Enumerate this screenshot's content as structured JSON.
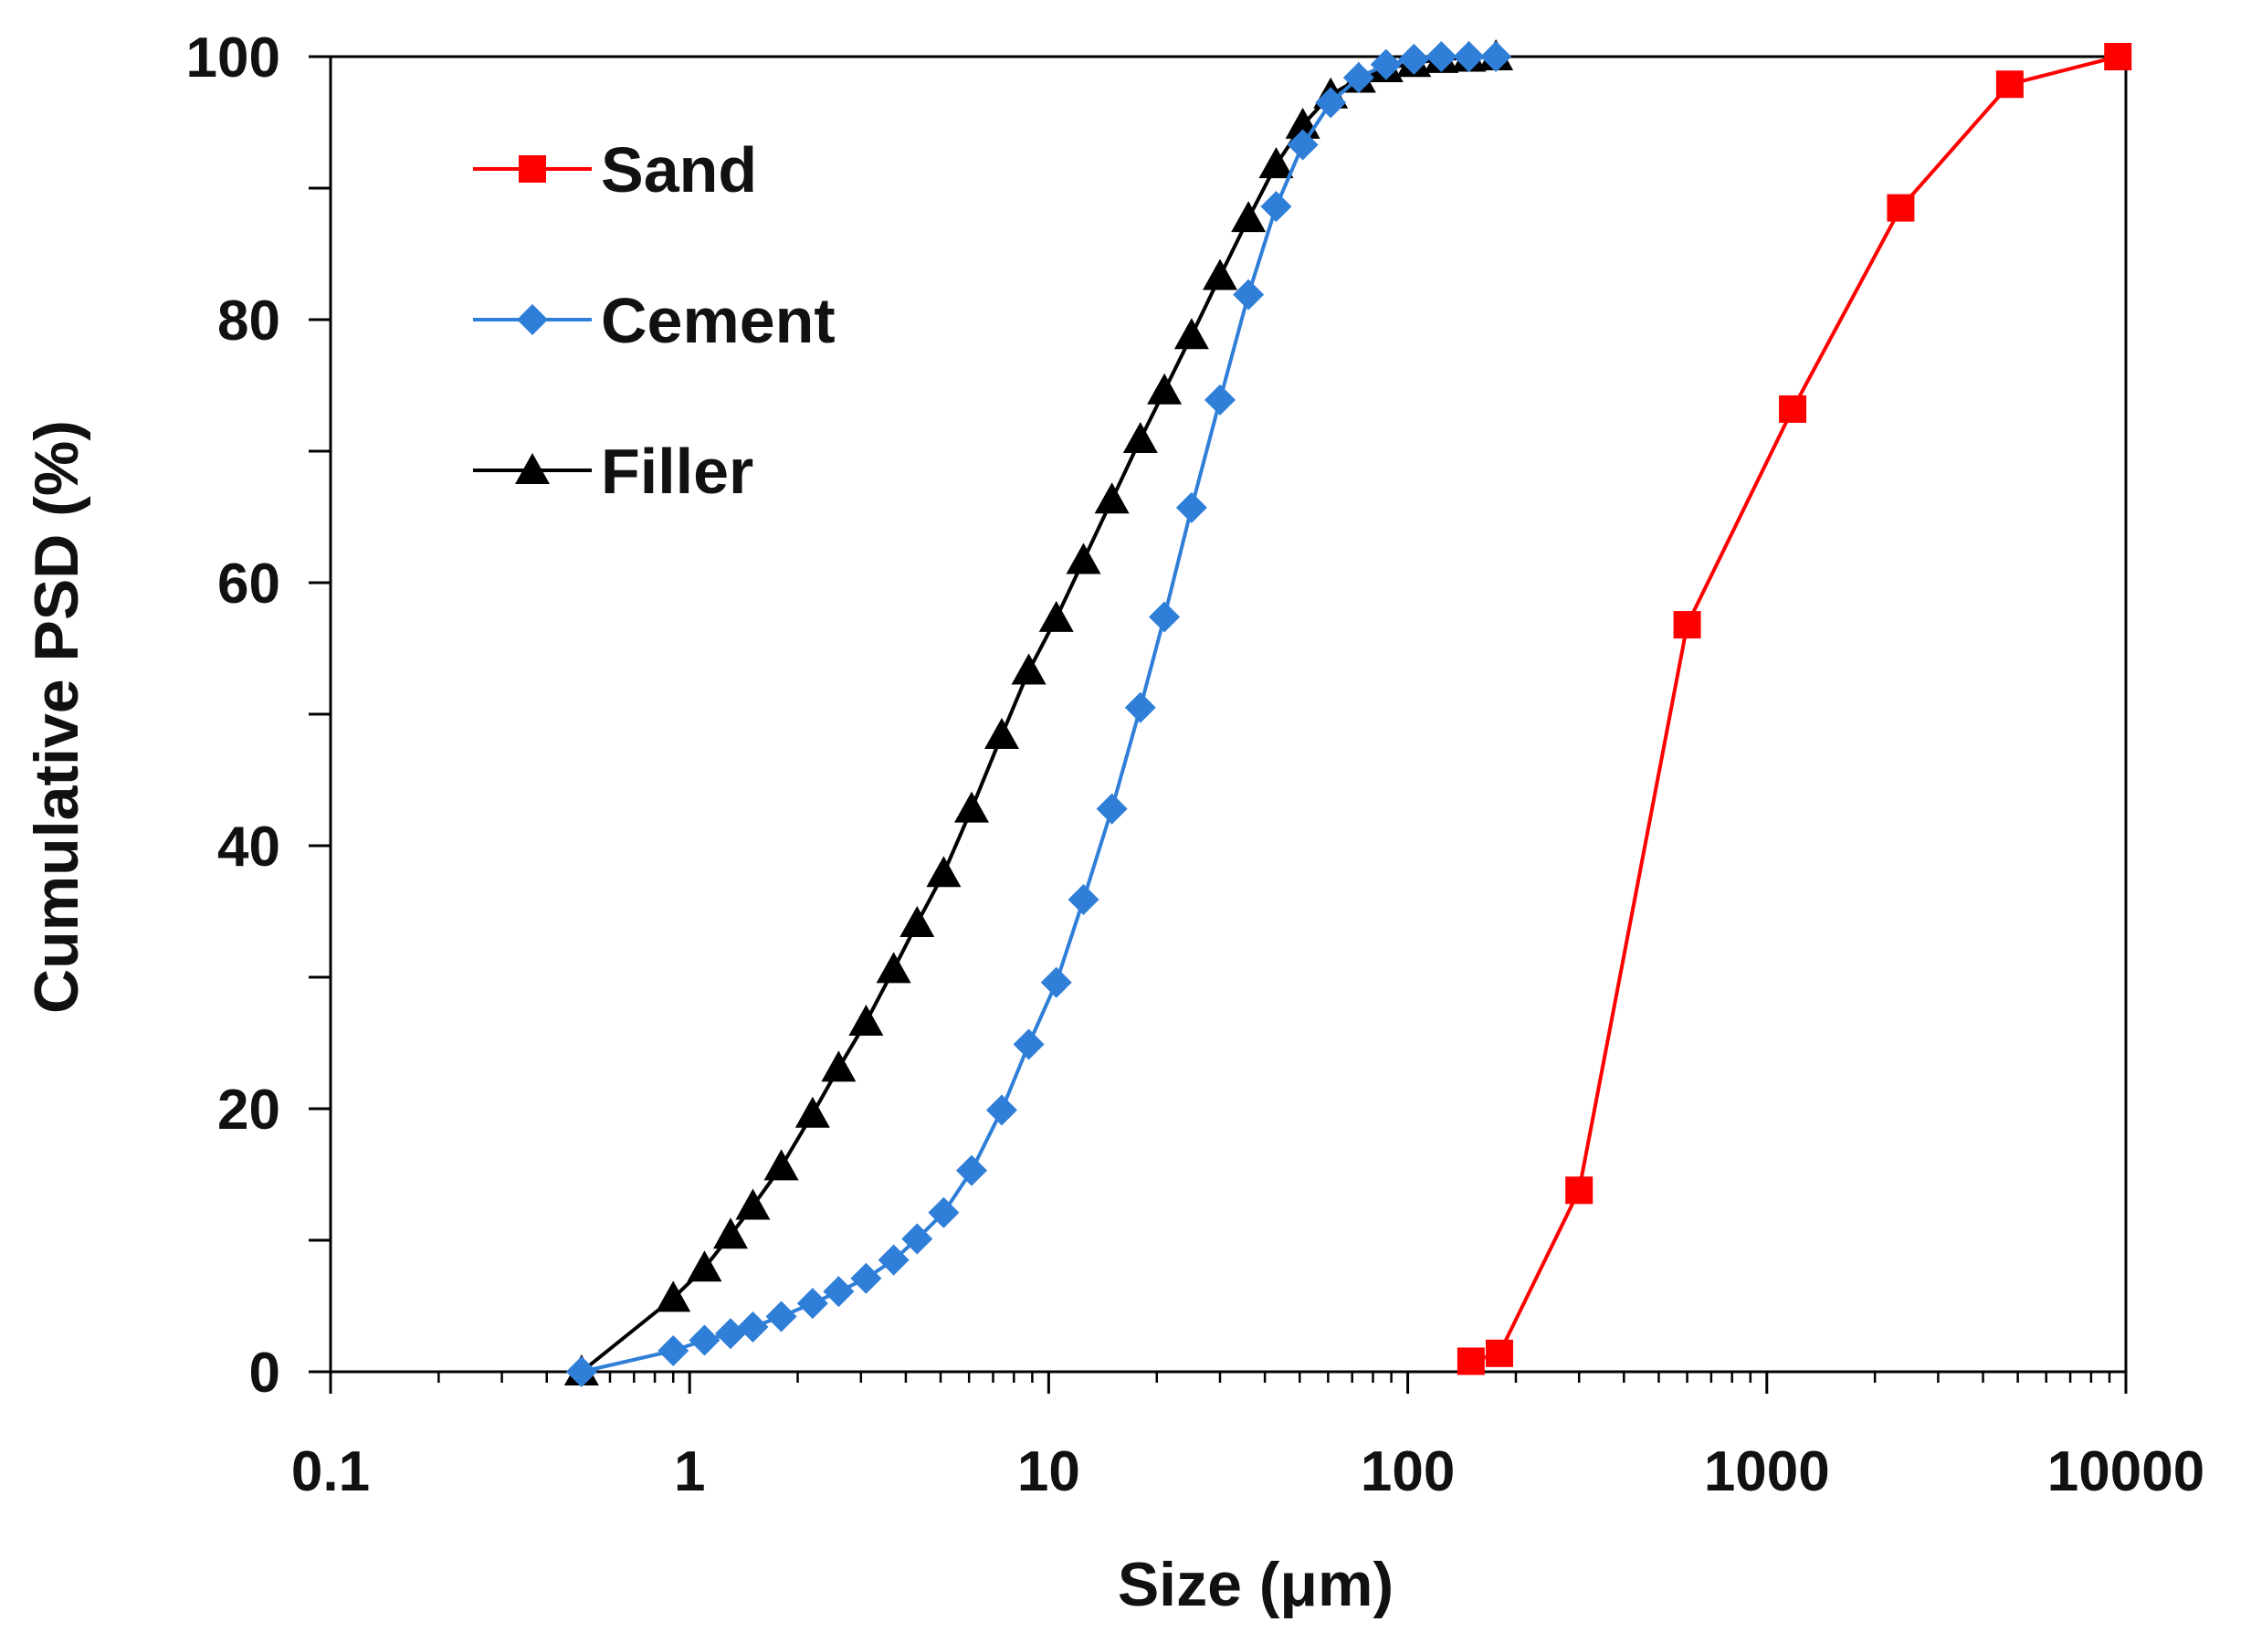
{
  "chart_data": {
    "type": "line",
    "xlabel": "Size (μm)",
    "ylabel": "Cumulative PSD (%)",
    "xscale": "log",
    "xlim": [
      0.1,
      10000
    ],
    "ylim": [
      0,
      100
    ],
    "xticks": [
      "0.1",
      "1",
      "10",
      "100",
      "1000",
      "10000"
    ],
    "yticks": [
      "0",
      "20",
      "40",
      "60",
      "80",
      "100"
    ],
    "grid": false,
    "legend": "top-left",
    "series": [
      {
        "name": "Sand",
        "color": "#ff0000",
        "marker": "square",
        "x": [
          150,
          180,
          300,
          600,
          1180,
          2360,
          4750,
          9500
        ],
        "y": [
          0.8,
          1.4,
          13.8,
          56.8,
          73.2,
          88.5,
          97.9,
          100
        ]
      },
      {
        "name": "Cement",
        "color": "#2f7ed8",
        "marker": "diamond",
        "x": [
          0.5,
          0.9,
          1.1,
          1.3,
          1.5,
          1.8,
          2.2,
          2.6,
          3.1,
          3.7,
          4.3,
          5.1,
          6.1,
          7.4,
          8.8,
          10.5,
          12.5,
          15,
          18,
          21,
          25,
          30,
          36,
          43,
          51,
          61,
          73,
          87,
          104,
          124,
          148,
          176
        ],
        "y": [
          0,
          1.6,
          2.4,
          2.9,
          3.4,
          4.2,
          5.2,
          6.1,
          7.1,
          8.5,
          10.1,
          12.1,
          15.3,
          19.9,
          24.9,
          29.6,
          35.9,
          42.8,
          50.5,
          57.4,
          65.7,
          73.9,
          81.9,
          88.6,
          93.3,
          96.5,
          98.4,
          99.4,
          99.8,
          100,
          100,
          100
        ]
      },
      {
        "name": "Filler",
        "color": "#000000",
        "marker": "triangle",
        "x": [
          0.5,
          0.9,
          1.1,
          1.3,
          1.5,
          1.8,
          2.2,
          2.6,
          3.1,
          3.7,
          4.3,
          5.1,
          6.1,
          7.4,
          8.8,
          10.5,
          12.5,
          15,
          18,
          21,
          25,
          30,
          36,
          43,
          51,
          61,
          73,
          87,
          104,
          124,
          148,
          176
        ],
        "y": [
          0,
          5.6,
          7.9,
          10.4,
          12.6,
          15.6,
          19.6,
          23.1,
          26.6,
          30.6,
          34.1,
          37.9,
          42.8,
          48.4,
          53.3,
          57.3,
          61.7,
          66.3,
          70.9,
          74.6,
          78.8,
          83.3,
          87.7,
          91.8,
          94.8,
          97.1,
          98.3,
          99.1,
          99.5,
          99.8,
          99.9,
          100
        ]
      }
    ]
  }
}
